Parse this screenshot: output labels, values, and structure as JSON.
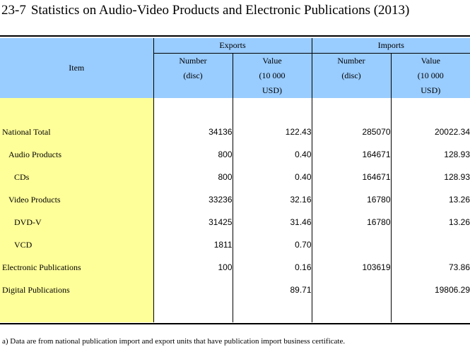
{
  "title": {
    "number": "23-7",
    "text": "Statistics on Audio-Video Products and Electronic Publications (2013)"
  },
  "header": {
    "item": "Item",
    "groups": [
      "Exports",
      "Imports"
    ],
    "number_label": [
      "Number",
      "(disc)"
    ],
    "value_label": [
      "Value",
      "(10 000",
      "USD)"
    ]
  },
  "rows": [
    {
      "label": "National Total",
      "exp_num": "34136",
      "exp_val": "122.43",
      "imp_num": "285070",
      "imp_val": "20022.34"
    },
    {
      "label": "Audio Products",
      "exp_num": "800",
      "exp_val": "0.40",
      "imp_num": "164671",
      "imp_val": "128.93"
    },
    {
      "label": "CDs",
      "exp_num": "800",
      "exp_val": "0.40",
      "imp_num": "164671",
      "imp_val": "128.93"
    },
    {
      "label": "Video Products",
      "exp_num": "33236",
      "exp_val": "32.16",
      "imp_num": "16780",
      "imp_val": "13.26"
    },
    {
      "label": "DVD-V",
      "exp_num": "31425",
      "exp_val": "31.46",
      "imp_num": "16780",
      "imp_val": "13.26"
    },
    {
      "label": "VCD",
      "exp_num": "1811",
      "exp_val": "0.70",
      "imp_num": "",
      "imp_val": ""
    },
    {
      "label": "Electronic Publications",
      "exp_num": "100",
      "exp_val": "0.16",
      "imp_num": "103619",
      "imp_val": "73.86"
    },
    {
      "label": "Digital Publications",
      "exp_num": "",
      "exp_val": "89.71",
      "imp_num": "",
      "imp_val": "19806.29"
    }
  ],
  "footnote": "a) Data are from national publication import and export units that have publication import business certificate.",
  "colors": {
    "header_bg": "#99ccff",
    "item_bg": "#ffff99"
  }
}
